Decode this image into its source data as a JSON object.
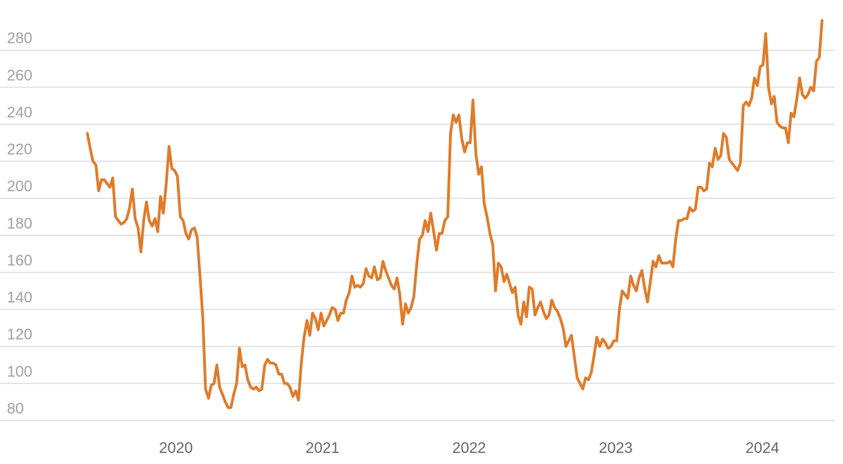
{
  "chart_data": {
    "type": "line",
    "x": [
      2019.396,
      2019.415,
      2019.434,
      2019.454,
      2019.473,
      2019.492,
      2019.511,
      2019.53,
      2019.55,
      2019.569,
      2019.588,
      2019.607,
      2019.626,
      2019.646,
      2019.665,
      2019.684,
      2019.703,
      2019.722,
      2019.742,
      2019.761,
      2019.78,
      2019.799,
      2019.818,
      2019.838,
      2019.857,
      2019.876,
      2019.895,
      2019.914,
      2019.934,
      2019.953,
      2019.972,
      2019.991,
      2020.01,
      2020.03,
      2020.049,
      2020.068,
      2020.087,
      2020.106,
      2020.126,
      2020.145,
      2020.164,
      2020.183,
      2020.202,
      2020.222,
      2020.241,
      2020.26,
      2020.279,
      2020.298,
      2020.318,
      2020.337,
      2020.356,
      2020.375,
      2020.394,
      2020.414,
      2020.433,
      2020.452,
      2020.471,
      2020.49,
      2020.51,
      2020.529,
      2020.548,
      2020.567,
      2020.586,
      2020.606,
      2020.625,
      2020.644,
      2020.663,
      2020.682,
      2020.702,
      2020.721,
      2020.74,
      2020.759,
      2020.778,
      2020.798,
      2020.817,
      2020.836,
      2020.855,
      2020.874,
      2020.894,
      2020.913,
      2020.932,
      2020.951,
      2020.97,
      2020.99,
      2021.009,
      2021.028,
      2021.047,
      2021.066,
      2021.086,
      2021.105,
      2021.124,
      2021.143,
      2021.162,
      2021.182,
      2021.201,
      2021.22,
      2021.239,
      2021.258,
      2021.278,
      2021.297,
      2021.316,
      2021.335,
      2021.354,
      2021.374,
      2021.393,
      2021.412,
      2021.431,
      2021.45,
      2021.47,
      2021.489,
      2021.508,
      2021.527,
      2021.546,
      2021.566,
      2021.585,
      2021.604,
      2021.623,
      2021.642,
      2021.662,
      2021.681,
      2021.7,
      2021.719,
      2021.738,
      2021.758,
      2021.777,
      2021.796,
      2021.815,
      2021.834,
      2021.854,
      2021.873,
      2021.892,
      2021.911,
      2021.93,
      2021.95,
      2021.969,
      2021.988,
      2022.007,
      2022.026,
      2022.046,
      2022.065,
      2022.084,
      2022.103,
      2022.122,
      2022.142,
      2022.161,
      2022.18,
      2022.199,
      2022.218,
      2022.238,
      2022.257,
      2022.276,
      2022.295,
      2022.314,
      2022.334,
      2022.353,
      2022.372,
      2022.391,
      2022.41,
      2022.43,
      2022.449,
      2022.468,
      2022.487,
      2022.506,
      2022.526,
      2022.545,
      2022.564,
      2022.583,
      2022.602,
      2022.622,
      2022.641,
      2022.66,
      2022.679,
      2022.698,
      2022.718,
      2022.737,
      2022.756,
      2022.775,
      2022.794,
      2022.814,
      2022.833,
      2022.852,
      2022.871,
      2022.89,
      2022.91,
      2022.929,
      2022.948,
      2022.967,
      2022.986,
      2023.006,
      2023.025,
      2023.044,
      2023.063,
      2023.082,
      2023.102,
      2023.121,
      2023.14,
      2023.159,
      2023.178,
      2023.198,
      2023.217,
      2023.236,
      2023.255,
      2023.274,
      2023.294,
      2023.313,
      2023.332,
      2023.351,
      2023.37,
      2023.39,
      2023.409,
      2023.428,
      2023.447,
      2023.466,
      2023.486,
      2023.505,
      2023.524,
      2023.543,
      2023.562,
      2023.582,
      2023.601,
      2023.62,
      2023.639,
      2023.658,
      2023.678,
      2023.697,
      2023.716,
      2023.735,
      2023.754,
      2023.774,
      2023.793,
      2023.812,
      2023.831,
      2023.85,
      2023.87,
      2023.889,
      2023.908,
      2023.927,
      2023.946,
      2023.966,
      2023.985,
      2024.004,
      2024.023,
      2024.042,
      2024.062,
      2024.081,
      2024.1,
      2024.119,
      2024.138,
      2024.158,
      2024.177,
      2024.196,
      2024.215,
      2024.234,
      2024.254,
      2024.273,
      2024.292,
      2024.311,
      2024.33,
      2024.35,
      2024.369,
      2024.388,
      2024.407
    ],
    "series": [
      {
        "color": "#e07b2a",
        "values": [
          235,
          227,
          220,
          218,
          204,
          210,
          210,
          208,
          206,
          211,
          190,
          188,
          186,
          187,
          189,
          195,
          205,
          189,
          184,
          171,
          188,
          198,
          188,
          185,
          189,
          182,
          201,
          192,
          208,
          228,
          216,
          215,
          212,
          190,
          188,
          181,
          178,
          183,
          184,
          179,
          158,
          136,
          97,
          92,
          99,
          100,
          110,
          98,
          94,
          90,
          87,
          87,
          94,
          100,
          119,
          109,
          110,
          102,
          98,
          97,
          98,
          96,
          97,
          110,
          113,
          111,
          111,
          110,
          105,
          105,
          100,
          100,
          98,
          93,
          96,
          91,
          111,
          125,
          134,
          126,
          138,
          135,
          129,
          138,
          131,
          134,
          137,
          141,
          140,
          134,
          138,
          138,
          145,
          149,
          158,
          152,
          153,
          152,
          154,
          162,
          158,
          157,
          163,
          156,
          157,
          166,
          161,
          157,
          153,
          151,
          157,
          148,
          132,
          143,
          138,
          141,
          147,
          164,
          178,
          180,
          188,
          182,
          192,
          182,
          172,
          181,
          181,
          188,
          190,
          235,
          245,
          241,
          245,
          232,
          225,
          230,
          230,
          253,
          224,
          213,
          217,
          197,
          190,
          181,
          175,
          150,
          165,
          163,
          155,
          159,
          154,
          149,
          152,
          137,
          132,
          144,
          136,
          152,
          151,
          137,
          141,
          144,
          139,
          135,
          137,
          145,
          141,
          139,
          135,
          130,
          120,
          123,
          126,
          114,
          103,
          100,
          97,
          103,
          102,
          106,
          115,
          125,
          120,
          124,
          122,
          119,
          120,
          123,
          123,
          140,
          150,
          148,
          146,
          158,
          153,
          150,
          157,
          161,
          151,
          144,
          155,
          166,
          163,
          169,
          165,
          165,
          165,
          166,
          163,
          178,
          188,
          188,
          189,
          189,
          195,
          193,
          194,
          206,
          206,
          204,
          205,
          219,
          217,
          227,
          221,
          223,
          235,
          233,
          221,
          219,
          217,
          215,
          219,
          250,
          252,
          250,
          254,
          265,
          261,
          271,
          272,
          289,
          260,
          251,
          255,
          241,
          239,
          238,
          238,
          230,
          246,
          244,
          253,
          265,
          256,
          254,
          256,
          260,
          258,
          274,
          276,
          296
        ]
      }
    ],
    "xlim": [
      2018.8,
      2024.55
    ],
    "xticks": [
      2020,
      2021,
      2022,
      2023,
      2024
    ],
    "ylim": [
      80,
      300
    ],
    "yticks": [
      80,
      100,
      120,
      140,
      160,
      180,
      200,
      220,
      240,
      260,
      280
    ],
    "grid": true
  }
}
